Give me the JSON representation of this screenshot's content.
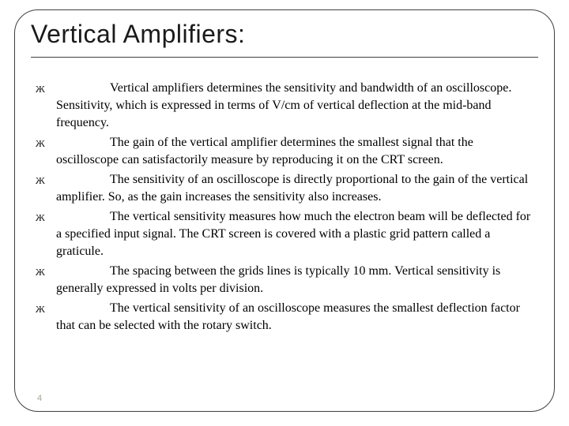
{
  "slide": {
    "title": "Vertical Amplifiers:",
    "title_color": "#1a1a1a",
    "title_fontsize": 32,
    "border_color": "#404040",
    "border_radius": 30,
    "background_color": "#ffffff",
    "body_fontsize": 16,
    "body_color": "#000000",
    "bullet_glyph": "ж",
    "slide_number": "4",
    "slide_number_color": "#a8a49a",
    "bullets": [
      "Vertical amplifiers determines the sensitivity and bandwidth of an oscilloscope. Sensitivity, which is expressed in terms of V/cm of vertical deflection at the mid-band frequency.",
      "The gain of the vertical amplifier determines the smallest signal that the oscilloscope can satisfactorily measure by reproducing it on the CRT screen.",
      "The sensitivity of an oscilloscope is directly proportional to the gain of the vertical amplifier. So, as the gain increases the sensitivity also increases.",
      "The vertical sensitivity measures how much the electron beam will be deflected for a specified input signal. The CRT screen is covered with a plastic grid pattern called a graticule.",
      "The spacing between the grids lines is typically 10 mm. Vertical sensitivity is generally expressed in volts per division.",
      "The vertical sensitivity of an oscilloscope measures the smallest deflection factor that can be  selected with the rotary switch."
    ]
  }
}
